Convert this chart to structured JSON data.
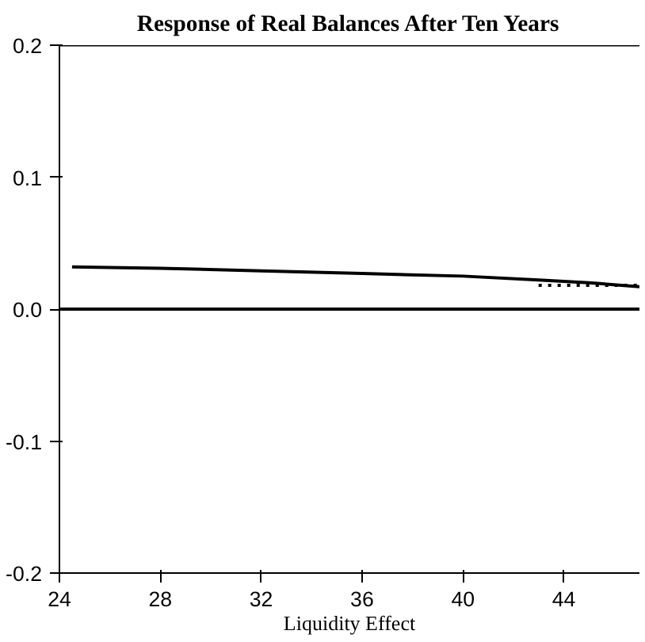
{
  "chart_data": {
    "type": "line",
    "title": "Response of Real Balances After Ten Years",
    "xlabel": "Liquidity Effect",
    "xlim": [
      24,
      47
    ],
    "ylim": [
      -0.2,
      0.2
    ],
    "xticks": [
      24,
      28,
      32,
      36,
      40,
      44
    ],
    "yticks": [
      {
        "value": -0.2,
        "label": "-0.2"
      },
      {
        "value": -0.1,
        "label": "-0.1"
      },
      {
        "value": 0,
        "label": "0.0"
      },
      {
        "value": 0.1,
        "label": "0.1"
      },
      {
        "value": 0.2,
        "label": "0.2"
      }
    ],
    "grid": false,
    "series": [
      {
        "color": "#000000",
        "line_style": "solid",
        "x": [
          24.5,
          28,
          32,
          36,
          40,
          43,
          45,
          47
        ],
        "values": [
          0.032,
          0.031,
          0.029,
          0.027,
          0.025,
          0.022,
          0.02,
          0.017
        ]
      },
      {
        "color": "#000000",
        "line_style": "dotted",
        "x": [
          43,
          45,
          47
        ],
        "values": [
          0.018,
          0.018,
          0.018
        ]
      }
    ],
    "ref_lines": [
      {
        "axis": "y",
        "value": 0,
        "label": null,
        "color": "#000000"
      }
    ]
  }
}
